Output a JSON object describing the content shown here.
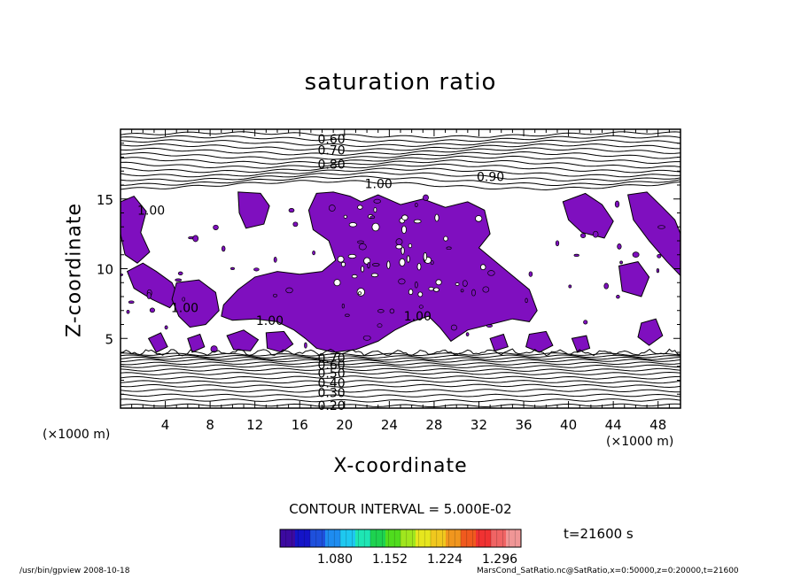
{
  "chart_data": {
    "type": "contour",
    "title": "saturation ratio",
    "xlabel": "X-coordinate",
    "ylabel": "Z-coordinate",
    "x_unit": "(×1000 m)",
    "y_unit": "(×1000 m)",
    "xlim": [
      0,
      50
    ],
    "ylim": [
      0,
      20
    ],
    "x_ticks": [
      4,
      8,
      12,
      16,
      20,
      24,
      28,
      32,
      36,
      40,
      44,
      48
    ],
    "y_ticks": [
      5,
      10,
      15
    ],
    "contour_interval": "CONTOUR INTERVAL = 5.000E-02",
    "time_label": "t=21600 s",
    "shaded_region": {
      "threshold": 1.0,
      "color": "#7f0fbf",
      "z_range": [
        4,
        15.5
      ]
    },
    "contour_labels": [
      {
        "value": "0.60",
        "x": 17.6,
        "z": 19.3
      },
      {
        "value": "0.70",
        "x": 17.6,
        "z": 18.5
      },
      {
        "value": "0.80",
        "x": 17.6,
        "z": 17.5
      },
      {
        "value": "0.90",
        "x": 31.8,
        "z": 16.6
      },
      {
        "value": "1.00",
        "x": 21.8,
        "z": 16.1
      },
      {
        "value": "1.00",
        "x": 1.5,
        "z": 14.2
      },
      {
        "value": "1.00",
        "x": 12.1,
        "z": 6.3
      },
      {
        "value": "1.00",
        "x": 25.3,
        "z": 6.6
      },
      {
        "value": "1.00",
        "x": 4.5,
        "z": 7.2
      },
      {
        "value": "0.20",
        "x": 17.6,
        "z": 0.2
      },
      {
        "value": "0.30",
        "x": 17.6,
        "z": 1.1
      },
      {
        "value": "0.40",
        "x": 17.6,
        "z": 1.8
      },
      {
        "value": "0.50",
        "x": 17.6,
        "z": 2.5
      },
      {
        "value": "0.60",
        "x": 17.6,
        "z": 3.1
      },
      {
        "value": "0.70",
        "x": 17.6,
        "z": 3.6
      }
    ],
    "colorbar": {
      "labels": [
        "1.080",
        "1.152",
        "1.224",
        "1.296"
      ],
      "colors": [
        "#3c0aa0",
        "#1414c8",
        "#1e50dc",
        "#1e8cf0",
        "#1ec8f0",
        "#1ee6b4",
        "#1ed250",
        "#50dc1e",
        "#a0e61e",
        "#e6e61e",
        "#f0c81e",
        "#f0961e",
        "#f05a1e",
        "#f03232",
        "#f06464",
        "#f09696"
      ]
    }
  },
  "footer": {
    "left": "/usr/bin/gpview  2008-10-18",
    "right": "MarsCond_SatRatio.nc@SatRatio,x=0:50000,z=0:20000,t=21600"
  }
}
